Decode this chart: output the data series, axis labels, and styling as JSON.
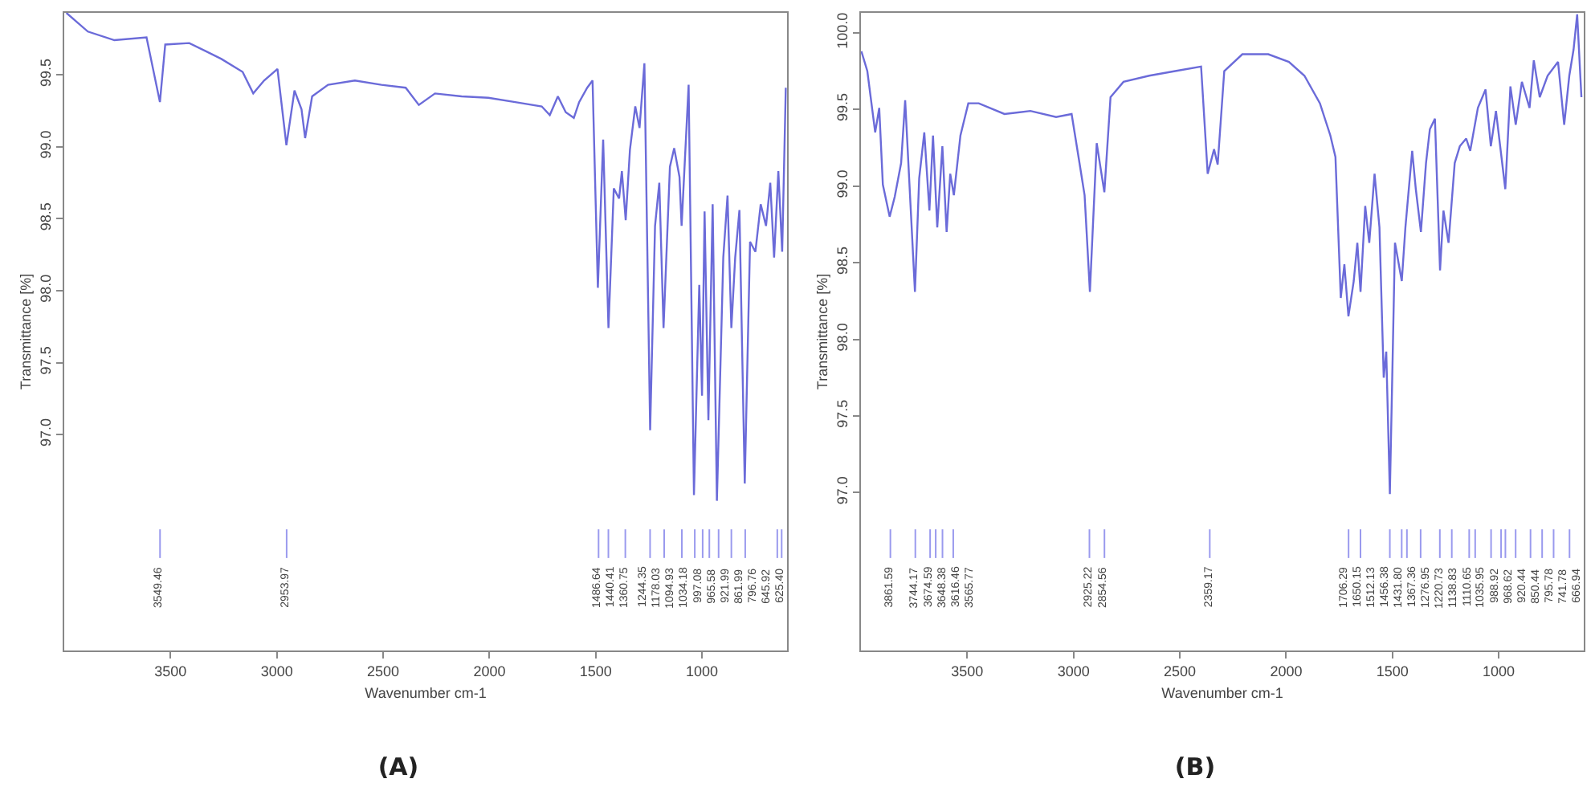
{
  "chart_data": [
    {
      "type": "line",
      "title": "(A)",
      "xlabel": "Wavenumber cm-1",
      "ylabel": "Transmittance [%]",
      "color": "#6b6bd9",
      "x": [
        3990,
        3889,
        3764,
        3613,
        3550,
        3525,
        3412,
        3261,
        3161,
        3111,
        3060,
        2997,
        2955,
        2917,
        2884,
        2867,
        2834,
        2759,
        2633,
        2508,
        2394,
        2332,
        2256,
        2131,
        2005,
        1879,
        1754,
        1716,
        1678,
        1641,
        1603,
        1578,
        1540,
        1515,
        1490,
        1465,
        1440,
        1415,
        1390,
        1377,
        1359,
        1339,
        1314,
        1294,
        1271,
        1244,
        1221,
        1201,
        1181,
        1151,
        1131,
        1106,
        1096,
        1063,
        1038,
        1013,
        1000,
        988,
        970,
        950,
        930,
        900,
        880,
        862,
        844,
        824,
        799,
        774,
        749,
        724,
        699,
        679,
        661,
        641,
        623,
        606
      ],
      "values": [
        99.93,
        99.8,
        99.74,
        99.76,
        99.31,
        99.71,
        99.72,
        99.61,
        99.52,
        99.37,
        99.46,
        99.54,
        99.01,
        99.39,
        99.26,
        99.06,
        99.35,
        99.43,
        99.46,
        99.43,
        99.41,
        99.29,
        99.37,
        99.35,
        99.34,
        99.31,
        99.28,
        99.22,
        99.35,
        99.24,
        99.2,
        99.31,
        99.41,
        99.46,
        98.02,
        99.05,
        97.74,
        98.71,
        98.64,
        98.83,
        98.49,
        98.98,
        99.28,
        99.13,
        99.58,
        97.03,
        98.45,
        98.75,
        97.74,
        98.86,
        98.99,
        98.79,
        98.45,
        99.43,
        96.58,
        98.04,
        97.27,
        98.55,
        97.1,
        98.6,
        96.54,
        98.23,
        98.66,
        97.74,
        98.23,
        98.56,
        96.66,
        98.34,
        98.27,
        98.6,
        98.45,
        98.75,
        98.23,
        98.83,
        98.27,
        99.41
      ],
      "xlim": [
        4000,
        600
      ],
      "ylim": [
        95.5,
        99.93
      ],
      "xticks": [
        3500,
        3000,
        2500,
        2000,
        1500,
        1000
      ],
      "yticks": [
        {
          "value": 97,
          "label": "97.0"
        },
        97.5,
        {
          "value": 98,
          "label": "98.0"
        },
        98.5,
        {
          "value": 99,
          "label": "99.0"
        },
        99.5
      ],
      "ref_lines": [
        {
          "axis": "x",
          "value": 3549.46,
          "label": "3549.46",
          "color": "#9a9aee"
        },
        {
          "axis": "x",
          "value": 2953.97,
          "label": "2953.97",
          "color": "#9a9aee"
        },
        {
          "axis": "x",
          "value": 1486.64,
          "label": "1486.64",
          "color": "#9a9aee"
        },
        {
          "axis": "x",
          "value": 1440.41,
          "label": "1440.41",
          "color": "#9a9aee"
        },
        {
          "axis": "x",
          "value": 1360.75,
          "label": "1360.75",
          "color": "#9a9aee"
        },
        {
          "axis": "x",
          "value": 1244.35,
          "label": "1244.35",
          "color": "#9a9aee"
        },
        {
          "axis": "x",
          "value": 1178.03,
          "label": "1178.03",
          "color": "#9a9aee"
        },
        {
          "axis": "x",
          "value": 1094.93,
          "label": "1094.93",
          "color": "#9a9aee"
        },
        {
          "axis": "x",
          "value": 1034.18,
          "label": "1034.18",
          "color": "#9a9aee"
        },
        {
          "axis": "x",
          "value": 997.08,
          "label": "997.08",
          "color": "#9a9aee"
        },
        {
          "axis": "x",
          "value": 965.58,
          "label": "965.58",
          "color": "#9a9aee"
        },
        {
          "axis": "x",
          "value": 921.99,
          "label": "921.99",
          "color": "#9a9aee"
        },
        {
          "axis": "x",
          "value": 861.99,
          "label": "861.99",
          "color": "#9a9aee"
        },
        {
          "axis": "x",
          "value": 796.76,
          "label": "796.76",
          "color": "#9a9aee"
        },
        {
          "axis": "x",
          "value": 645.92,
          "label": "645.92",
          "color": "#9a9aee"
        },
        {
          "axis": "x",
          "value": 625.4,
          "label": "625.40",
          "color": "#9a9aee"
        }
      ]
    },
    {
      "type": "line",
      "title": "(B)",
      "xlabel": "Wavenumber cm-1",
      "ylabel": "Transmittance [%]",
      "color": "#6b6bd9",
      "x": [
        3998,
        3970,
        3933,
        3914,
        3897,
        3865,
        3841,
        3811,
        3792,
        3746,
        3726,
        3702,
        3678,
        3661,
        3641,
        3617,
        3597,
        3580,
        3563,
        3532,
        3495,
        3446,
        3325,
        3203,
        3082,
        3009,
        2972,
        2948,
        2923,
        2891,
        2855,
        2826,
        2765,
        2644,
        2522,
        2400,
        2369,
        2339,
        2322,
        2291,
        2206,
        2084,
        1987,
        1914,
        1841,
        1792,
        1768,
        1743,
        1726,
        1707,
        1682,
        1665,
        1650,
        1628,
        1609,
        1584,
        1561,
        1541,
        1529,
        1512,
        1488,
        1456,
        1439,
        1407,
        1390,
        1366,
        1342,
        1324,
        1300,
        1276,
        1260,
        1236,
        1207,
        1183,
        1153,
        1134,
        1098,
        1062,
        1037,
        1013,
        969,
        945,
        920,
        891,
        855,
        835,
        807,
        770,
        721,
        692,
        668,
        648,
        631,
        611
      ],
      "values": [
        99.88,
        99.75,
        99.35,
        99.51,
        99.01,
        98.8,
        98.93,
        99.15,
        99.56,
        98.31,
        99.05,
        99.35,
        98.84,
        99.33,
        98.73,
        99.26,
        98.7,
        99.08,
        98.94,
        99.33,
        99.54,
        99.54,
        99.47,
        99.49,
        99.45,
        99.47,
        99.15,
        98.94,
        98.31,
        99.28,
        98.96,
        99.58,
        99.68,
        99.72,
        99.75,
        99.78,
        99.08,
        99.24,
        99.14,
        99.75,
        99.86,
        99.86,
        99.81,
        99.72,
        99.54,
        99.33,
        99.19,
        98.27,
        98.49,
        98.15,
        98.38,
        98.63,
        98.31,
        98.87,
        98.63,
        99.08,
        98.73,
        97.75,
        97.92,
        96.99,
        98.63,
        98.38,
        98.73,
        99.23,
        98.98,
        98.7,
        99.15,
        99.37,
        99.44,
        98.45,
        98.84,
        98.63,
        99.15,
        99.26,
        99.31,
        99.23,
        99.51,
        99.63,
        99.26,
        99.49,
        98.98,
        99.65,
        99.4,
        99.68,
        99.51,
        99.82,
        99.58,
        99.72,
        99.81,
        99.4,
        99.72,
        99.89,
        100.12,
        99.58
      ],
      "xlim": [
        4000,
        600
      ],
      "ylim": [
        95.97,
        100.13
      ],
      "xticks": [
        3500,
        3000,
        2500,
        2000,
        1500,
        1000
      ],
      "yticks": [
        {
          "value": 97,
          "label": "97.0"
        },
        97.5,
        {
          "value": 98,
          "label": "98.0"
        },
        98.5,
        {
          "value": 99,
          "label": "99.0"
        },
        99.5,
        {
          "value": 100,
          "label": "100.0"
        }
      ],
      "ref_lines": [
        {
          "axis": "x",
          "value": 3861.59,
          "label": "3861.59",
          "color": "#9a9aee"
        },
        {
          "axis": "x",
          "value": 3744.17,
          "label": "3744.17",
          "color": "#9a9aee"
        },
        {
          "axis": "x",
          "value": 3674.59,
          "label": "3674.59",
          "color": "#9a9aee"
        },
        {
          "axis": "x",
          "value": 3648.38,
          "label": "3648.38",
          "color": "#9a9aee"
        },
        {
          "axis": "x",
          "value": 3616.46,
          "label": "3616.46",
          "color": "#9a9aee"
        },
        {
          "axis": "x",
          "value": 3565.77,
          "label": "3565.77",
          "color": "#9a9aee"
        },
        {
          "axis": "x",
          "value": 2925.22,
          "label": "2925.22",
          "color": "#9a9aee"
        },
        {
          "axis": "x",
          "value": 2854.56,
          "label": "2854.56",
          "color": "#9a9aee"
        },
        {
          "axis": "x",
          "value": 2359.17,
          "label": "2359.17",
          "color": "#9a9aee"
        },
        {
          "axis": "x",
          "value": 1706.29,
          "label": "1706.29",
          "color": "#9a9aee"
        },
        {
          "axis": "x",
          "value": 1650.15,
          "label": "1650.15",
          "color": "#9a9aee"
        },
        {
          "axis": "x",
          "value": 1512.13,
          "label": "1512.13",
          "color": "#9a9aee"
        },
        {
          "axis": "x",
          "value": 1456.38,
          "label": "1456.38",
          "color": "#9a9aee"
        },
        {
          "axis": "x",
          "value": 1431.8,
          "label": "1431.80",
          "color": "#9a9aee"
        },
        {
          "axis": "x",
          "value": 1367.36,
          "label": "1367.36",
          "color": "#9a9aee"
        },
        {
          "axis": "x",
          "value": 1276.95,
          "label": "1276.95",
          "color": "#9a9aee"
        },
        {
          "axis": "x",
          "value": 1220.73,
          "label": "1220.73",
          "color": "#9a9aee"
        },
        {
          "axis": "x",
          "value": 1138.83,
          "label": "1138.83",
          "color": "#9a9aee"
        },
        {
          "axis": "x",
          "value": 1110.65,
          "label": "1110.65",
          "color": "#9a9aee"
        },
        {
          "axis": "x",
          "value": 1035.95,
          "label": "1035.95",
          "color": "#9a9aee"
        },
        {
          "axis": "x",
          "value": 988.92,
          "label": "988.92",
          "color": "#9a9aee"
        },
        {
          "axis": "x",
          "value": 968.62,
          "label": "968.62",
          "color": "#9a9aee"
        },
        {
          "axis": "x",
          "value": 920.44,
          "label": "920.44",
          "color": "#9a9aee"
        },
        {
          "axis": "x",
          "value": 850.44,
          "label": "850.44",
          "color": "#9a9aee"
        },
        {
          "axis": "x",
          "value": 795.78,
          "label": "795.78",
          "color": "#9a9aee"
        },
        {
          "axis": "x",
          "value": 741.78,
          "label": "741.78",
          "color": "#9a9aee"
        },
        {
          "axis": "x",
          "value": 666.94,
          "label": "666.94",
          "color": "#9a9aee"
        }
      ]
    }
  ]
}
